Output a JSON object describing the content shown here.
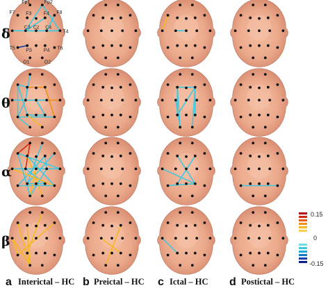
{
  "bands": [
    "δ",
    "θ",
    "α",
    "β"
  ],
  "panels": [
    {
      "letter": "a",
      "title": "Interictal – HC"
    },
    {
      "letter": "b",
      "title": "Preictal – HC"
    },
    {
      "letter": "c",
      "title": "Ictal – HC"
    },
    {
      "letter": "d",
      "title": "Postictal – HC"
    }
  ],
  "electrodes": [
    {
      "name": "Fp1",
      "label": "Fp1"
    },
    {
      "name": "Fp2",
      "label": "Fp2"
    },
    {
      "name": "F7",
      "label": "F7"
    },
    {
      "name": "F3",
      "label": "F3"
    },
    {
      "name": "Fz",
      "label": ""
    },
    {
      "name": "F4",
      "label": "F4"
    },
    {
      "name": "F8",
      "label": "F8"
    },
    {
      "name": "T3",
      "label": "T3"
    },
    {
      "name": "C3",
      "label": "C3"
    },
    {
      "name": "Cz",
      "label": "Cz"
    },
    {
      "name": "C4",
      "label": "C4"
    },
    {
      "name": "T4",
      "label": "T4"
    },
    {
      "name": "T5",
      "label": "T5"
    },
    {
      "name": "P3",
      "label": "P3"
    },
    {
      "name": "Pz",
      "label": ""
    },
    {
      "name": "P4",
      "label": "P4"
    },
    {
      "name": "T6",
      "label": "T6"
    },
    {
      "name": "O1",
      "label": "O1"
    },
    {
      "name": "O2",
      "label": "O2"
    }
  ],
  "colorbar": {
    "max_label": "0.15",
    "zero_label": "0",
    "min_label": "-0.15",
    "colors": [
      "#b01010",
      "#d02a10",
      "#e86010",
      "#f09018",
      "#f6b820",
      "#f8d050",
      "#ffffff",
      "#ffffff",
      "#ffffff",
      "#6fdde8",
      "#40c8e0",
      "#20a8d8",
      "#1878c8",
      "#1040a8",
      "#0a1e88"
    ]
  },
  "connections": [
    [
      [
        [
          "Fp2",
          "C3",
          "#40c8e0"
        ],
        [
          "Fp2",
          "T4",
          "#40c8e0"
        ],
        [
          "F8",
          "C4",
          "#40c8e0"
        ],
        [
          "F4",
          "C3",
          "#40c8e0"
        ],
        [
          "C3",
          "C4",
          "#40c8e0"
        ],
        [
          "T3",
          "T4",
          "#40c8e0"
        ],
        [
          "C3",
          "T4",
          "#40c8e0"
        ],
        [
          "T5",
          "P3",
          "#1040a8"
        ]
      ],
      [],
      [
        [
          "C3",
          "Cz",
          "#40c8e0"
        ],
        [
          "T3",
          "F7",
          "#f6b820"
        ]
      ],
      []
    ],
    [
      [
        [
          "F3",
          "F7",
          "#40c8e0"
        ],
        [
          "F3",
          "F4",
          "#f09018"
        ],
        [
          "F3",
          "C3",
          "#40c8e0"
        ],
        [
          "F7",
          "T5",
          "#40c8e0"
        ],
        [
          "C3",
          "Cz",
          "#40c8e0"
        ],
        [
          "Cz",
          "C4",
          "#40c8e0"
        ],
        [
          "T3",
          "T4",
          "#40c8e0"
        ],
        [
          "C3",
          "T5",
          "#40c8e0"
        ],
        [
          "P3",
          "P4",
          "#40c8e0"
        ],
        [
          "T5",
          "O1",
          "#40c8e0"
        ],
        [
          "Cz",
          "P4",
          "#40c8e0"
        ],
        [
          "Fp1",
          "C3",
          "#40c8e0"
        ],
        [
          "F4",
          "T6",
          "#f09018"
        ],
        [
          "T5",
          "T6",
          "#40c8e0"
        ],
        [
          "C4",
          "T4",
          "#f09018"
        ],
        [
          "P3",
          "O2",
          "#f6b820"
        ],
        [
          "F7",
          "P3",
          "#40c8e0"
        ]
      ],
      [],
      [
        [
          "F3",
          "F4",
          "#40c8e0"
        ],
        [
          "F3",
          "P3",
          "#40c8e0"
        ],
        [
          "F4",
          "P4",
          "#40c8e0"
        ],
        [
          "F3",
          "O1",
          "#40c8e0"
        ],
        [
          "F4",
          "O2",
          "#40c8e0"
        ],
        [
          "F4",
          "P3",
          "#40c8e0"
        ],
        [
          "C3",
          "O1",
          "#40c8e0"
        ]
      ],
      []
    ],
    [
      [
        [
          "Fp1",
          "F7",
          "#d02a10"
        ],
        [
          "Fp1",
          "C3",
          "#d02a10"
        ],
        [
          "F3",
          "O2",
          "#f6b820"
        ],
        [
          "F7",
          "T4",
          "#40c8e0"
        ],
        [
          "T3",
          "T4",
          "#40c8e0"
        ],
        [
          "C3",
          "P4",
          "#40c8e0"
        ],
        [
          "F3",
          "T6",
          "#40c8e0"
        ],
        [
          "Fp2",
          "P3",
          "#40c8e0"
        ],
        [
          "F4",
          "T5",
          "#40c8e0"
        ],
        [
          "C4",
          "O1",
          "#40c8e0"
        ],
        [
          "F8",
          "P3",
          "#40c8e0"
        ],
        [
          "T3",
          "T6",
          "#f6b820"
        ],
        [
          "T5",
          "T6",
          "#40c8e0"
        ],
        [
          "Cz",
          "O1",
          "#f6b820"
        ],
        [
          "F7",
          "O1",
          "#40c8e0"
        ],
        [
          "F4",
          "C4",
          "#40c8e0"
        ],
        [
          "P3",
          "P4",
          "#40c8e0"
        ]
      ],
      [],
      [
        [
          "F3",
          "P4",
          "#40c8e0"
        ],
        [
          "F4",
          "P3",
          "#40c8e0"
        ],
        [
          "T3",
          "P4",
          "#40c8e0"
        ],
        [
          "T5",
          "P4",
          "#40c8e0"
        ]
      ],
      [
        [
          "T5",
          "T6",
          "#40c8e0"
        ]
      ]
    ],
    [
      [
        [
          "Fp2",
          "P3",
          "#f6b820"
        ],
        [
          "F8",
          "T5",
          "#f6b820"
        ],
        [
          "F7",
          "O1",
          "#f6b820"
        ],
        [
          "T3",
          "O1",
          "#f6b820"
        ],
        [
          "F3",
          "O1",
          "#f6b820"
        ],
        [
          "T3",
          "T5",
          "#f6b820"
        ]
      ],
      [
        [
          "F4",
          "O1",
          "#f6b820"
        ],
        [
          "C3",
          "P4",
          "#f6b820"
        ]
      ],
      [
        [
          "T3",
          "P3",
          "#40c8e0"
        ]
      ],
      []
    ]
  ]
}
